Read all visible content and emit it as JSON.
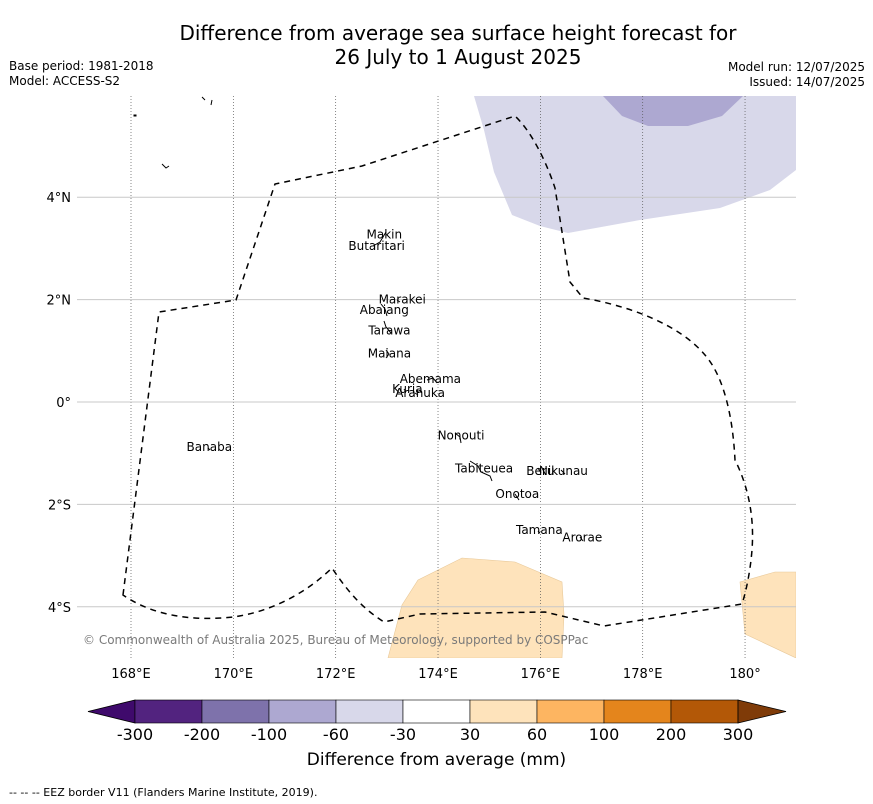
{
  "header": {
    "title_line1": "Difference from average sea surface height forecast for",
    "title_line2": "26 July to 1 August 2025",
    "base_period": "Base period: 1981-2018",
    "model": "Model: ACCESS-S2",
    "model_run": "Model run: 12/07/2025",
    "issued": "Issued: 14/07/2025"
  },
  "map": {
    "lon_labels": [
      "168°E",
      "170°E",
      "172°E",
      "174°E",
      "176°E",
      "178°E",
      "180°"
    ],
    "lat_labels": [
      "4°N",
      "2°N",
      "0°",
      "2°S",
      "4°S"
    ],
    "copyright": "© Commonwealth of Australia 2025, Bureau of Meteorology, supported by COSPPac",
    "islands": [
      {
        "name": "Makin",
        "lon": 172.95,
        "lat": 3.27
      },
      {
        "name": "Butaritari",
        "lon": 172.8,
        "lat": 3.05
      },
      {
        "name": "Marakei",
        "lon": 173.3,
        "lat": 2.0
      },
      {
        "name": "Abaiang",
        "lon": 172.95,
        "lat": 1.8
      },
      {
        "name": "Tarawa",
        "lon": 173.05,
        "lat": 1.4
      },
      {
        "name": "Maiana",
        "lon": 173.05,
        "lat": 0.95
      },
      {
        "name": "Abemama",
        "lon": 173.85,
        "lat": 0.45
      },
      {
        "name": "Kuria",
        "lon": 173.4,
        "lat": 0.25
      },
      {
        "name": "Aranuka",
        "lon": 173.65,
        "lat": 0.18
      },
      {
        "name": "Nonouti",
        "lon": 174.45,
        "lat": -0.65
      },
      {
        "name": "Beru",
        "lon": 176.0,
        "lat": -1.35
      },
      {
        "name": "Nikunau",
        "lon": 176.45,
        "lat": -1.35
      },
      {
        "name": "Tabiteuea",
        "lon": 174.9,
        "lat": -1.3
      },
      {
        "name": "Onotoa",
        "lon": 175.55,
        "lat": -1.8
      },
      {
        "name": "Tamana",
        "lon": 175.98,
        "lat": -2.5
      },
      {
        "name": "Arorae",
        "lon": 176.82,
        "lat": -2.65
      },
      {
        "name": "Banaba",
        "lon": 169.53,
        "lat": -0.88
      }
    ]
  },
  "colorbar": {
    "ticks": [
      "-300",
      "-200",
      "-100",
      "-60",
      "-30",
      "30",
      "60",
      "100",
      "200",
      "300"
    ],
    "colors": [
      "#3f0a6c",
      "#52237f",
      "#7e72ab",
      "#ada8d1",
      "#d8d8ea",
      "#ffffff",
      "#fee3bb",
      "#fdb561",
      "#e4851c",
      "#b35807",
      "#7f3b08"
    ],
    "label": "Difference from average (mm)"
  },
  "footer": {
    "eez_note": "--  --  -- EEZ border V11 (Flanders Marine Institute, 2019)."
  }
}
